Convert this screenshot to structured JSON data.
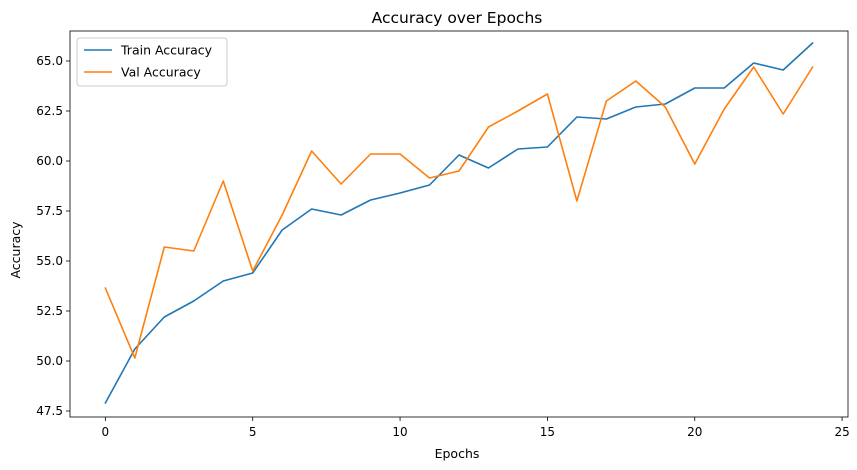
{
  "chart_data": {
    "type": "line",
    "title": "Accuracy over Epochs",
    "xlabel": "Epochs",
    "ylabel": "Accuracy",
    "xlim": [
      -1.2,
      25.2
    ],
    "ylim": [
      47.2,
      66.5
    ],
    "xticks": [
      0,
      5,
      10,
      15,
      20,
      25
    ],
    "yticks": [
      47.5,
      50.0,
      52.5,
      55.0,
      57.5,
      60.0,
      62.5,
      65.0
    ],
    "xtick_labels": [
      "0",
      "5",
      "10",
      "15",
      "20",
      "25"
    ],
    "ytick_labels": [
      "47.5",
      "50.0",
      "52.5",
      "55.0",
      "57.5",
      "60.0",
      "62.5",
      "65.0"
    ],
    "grid": false,
    "legend": "top-left",
    "x": [
      0,
      1,
      2,
      3,
      4,
      5,
      6,
      7,
      8,
      9,
      10,
      11,
      12,
      13,
      14,
      15,
      16,
      17,
      18,
      19,
      20,
      21,
      22,
      23,
      24
    ],
    "series": [
      {
        "name": "Train Accuracy",
        "color": "#1f77b4",
        "values": [
          47.9,
          50.6,
          52.2,
          53.0,
          54.0,
          54.4,
          56.55,
          57.6,
          57.3,
          58.05,
          58.4,
          58.8,
          60.3,
          59.65,
          60.6,
          60.7,
          62.2,
          62.1,
          62.7,
          62.85,
          63.65,
          63.65,
          64.9,
          64.55,
          65.9
        ]
      },
      {
        "name": "Val Accuracy",
        "color": "#ff7f0e",
        "values": [
          53.65,
          50.15,
          55.7,
          55.5,
          59.0,
          54.5,
          57.3,
          60.5,
          58.85,
          60.35,
          60.35,
          59.15,
          59.5,
          61.7,
          62.5,
          63.35,
          58.0,
          63.0,
          64.0,
          62.7,
          59.85,
          62.6,
          64.7,
          62.35,
          64.7
        ]
      }
    ]
  }
}
